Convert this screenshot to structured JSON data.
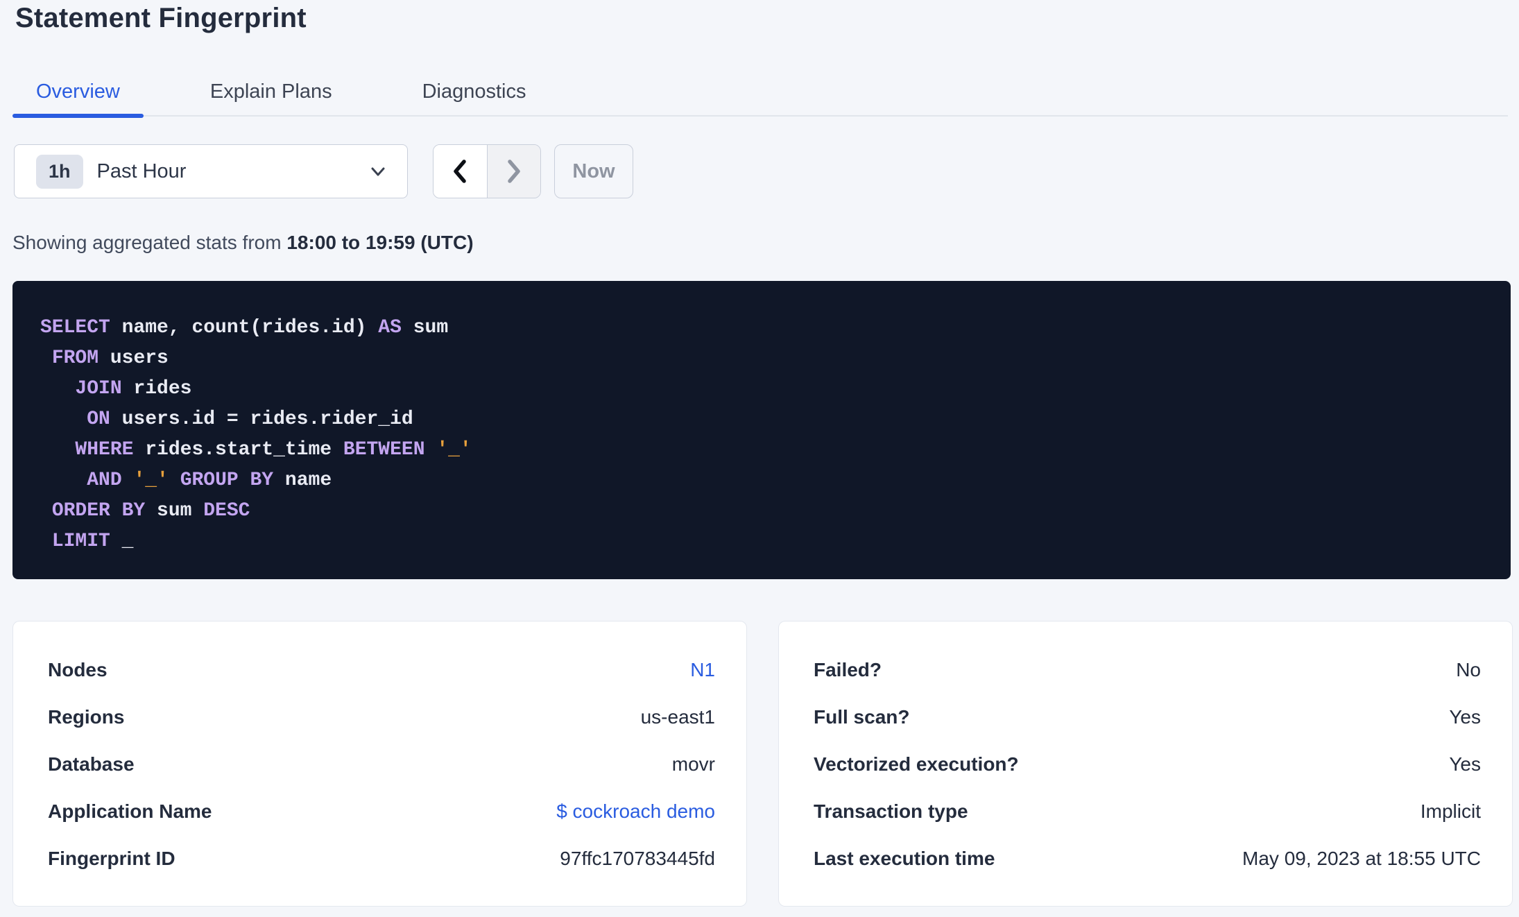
{
  "header": {
    "title": "Statement Fingerprint"
  },
  "tabs": [
    {
      "label": "Overview",
      "active": true
    },
    {
      "label": "Explain Plans",
      "active": false
    },
    {
      "label": "Diagnostics",
      "active": false
    }
  ],
  "time_picker": {
    "duration_badge": "1h",
    "selected_label": "Past Hour",
    "now_label": "Now"
  },
  "stats_summary": {
    "prefix": "Showing aggregated stats from ",
    "range_bold": "18:00 to 19:59 (UTC)"
  },
  "sql_statement": {
    "lines": [
      [
        {
          "kind": "kw",
          "text": "SELECT"
        },
        {
          "kind": "id",
          "text": " name, count(rides.id) "
        },
        {
          "kind": "kw",
          "text": "AS"
        },
        {
          "kind": "id",
          "text": " sum"
        }
      ],
      [
        {
          "kind": "id",
          "text": " "
        },
        {
          "kind": "kw",
          "text": "FROM"
        },
        {
          "kind": "id",
          "text": " users"
        }
      ],
      [
        {
          "kind": "id",
          "text": "   "
        },
        {
          "kind": "kw",
          "text": "JOIN"
        },
        {
          "kind": "id",
          "text": " rides"
        }
      ],
      [
        {
          "kind": "id",
          "text": "    "
        },
        {
          "kind": "kw",
          "text": "ON"
        },
        {
          "kind": "id",
          "text": " users.id = rides.rider_id"
        }
      ],
      [
        {
          "kind": "id",
          "text": "   "
        },
        {
          "kind": "kw",
          "text": "WHERE"
        },
        {
          "kind": "id",
          "text": " rides.start_time "
        },
        {
          "kind": "kw",
          "text": "BETWEEN"
        },
        {
          "kind": "id",
          "text": " "
        },
        {
          "kind": "lit",
          "text": "'_'"
        }
      ],
      [
        {
          "kind": "id",
          "text": "    "
        },
        {
          "kind": "kw",
          "text": "AND"
        },
        {
          "kind": "id",
          "text": " "
        },
        {
          "kind": "lit",
          "text": "'_'"
        },
        {
          "kind": "id",
          "text": " "
        },
        {
          "kind": "kw",
          "text": "GROUP BY"
        },
        {
          "kind": "id",
          "text": " name"
        }
      ],
      [
        {
          "kind": "id",
          "text": " "
        },
        {
          "kind": "kw",
          "text": "ORDER BY"
        },
        {
          "kind": "id",
          "text": " sum "
        },
        {
          "kind": "kw",
          "text": "DESC"
        }
      ],
      [
        {
          "kind": "id",
          "text": " "
        },
        {
          "kind": "kw",
          "text": "LIMIT"
        },
        {
          "kind": "id",
          "text": " _"
        }
      ]
    ]
  },
  "details_cards": {
    "left": {
      "rows": [
        {
          "label": "Nodes",
          "value": "N1",
          "link": true
        },
        {
          "label": "Regions",
          "value": "us-east1",
          "link": false
        },
        {
          "label": "Database",
          "value": "movr",
          "link": false
        },
        {
          "label": "Application Name",
          "value": "$ cockroach demo",
          "link": true
        },
        {
          "label": "Fingerprint ID",
          "value": "97ffc170783445fd",
          "link": false
        }
      ]
    },
    "right": {
      "rows": [
        {
          "label": "Failed?",
          "value": "No",
          "link": false
        },
        {
          "label": "Full scan?",
          "value": "Yes",
          "link": false
        },
        {
          "label": "Vectorized execution?",
          "value": "Yes",
          "link": false
        },
        {
          "label": "Transaction type",
          "value": "Implicit",
          "link": false
        },
        {
          "label": "Last execution time",
          "value": "May 09, 2023 at 18:55 UTC",
          "link": false
        }
      ]
    }
  },
  "colors": {
    "accent_blue": "#2a5ce0",
    "page_background": "#f4f6fa",
    "sql_background": "#101728",
    "sql_keyword": "#c3a5f0",
    "sql_identifier": "#e9ebf3",
    "sql_literal": "#e7a03c",
    "disabled_text": "#8f95a1"
  }
}
